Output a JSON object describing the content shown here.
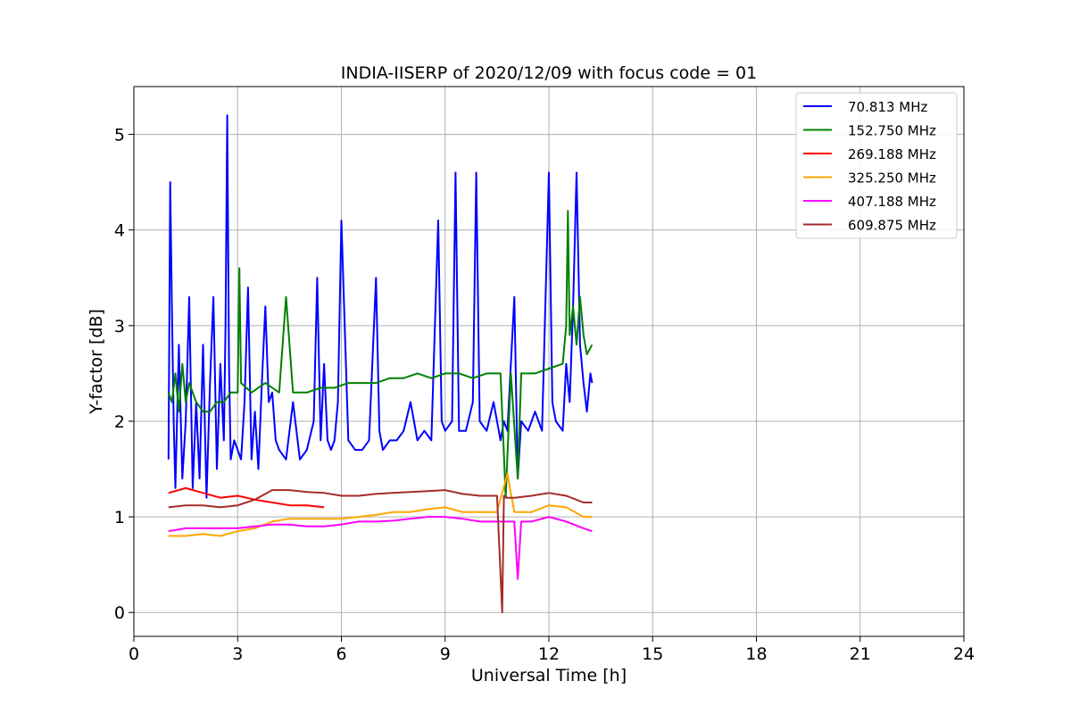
{
  "chart_data": {
    "type": "line",
    "title": "INDIA-IISERP of 2020/12/09 with focus code = 01",
    "xlabel": "Universal Time [h]",
    "ylabel": "Y-factor [dB]",
    "xlim": [
      0,
      24
    ],
    "ylim": [
      -0.25,
      5.5
    ],
    "xticks": [
      "0",
      "3",
      "6",
      "9",
      "12",
      "15",
      "18",
      "21",
      "24"
    ],
    "yticks": [
      "0",
      "1",
      "2",
      "3",
      "4",
      "5"
    ],
    "grid": true,
    "legend_position": "top-right",
    "series": [
      {
        "name": "70.813 MHz",
        "color": "#0000ff",
        "x": [
          1.0,
          1.05,
          1.1,
          1.15,
          1.2,
          1.3,
          1.4,
          1.5,
          1.6,
          1.7,
          1.8,
          1.9,
          2.0,
          2.1,
          2.2,
          2.3,
          2.4,
          2.5,
          2.6,
          2.65,
          2.7,
          2.75,
          2.8,
          2.9,
          3.0,
          3.1,
          3.2,
          3.3,
          3.4,
          3.5,
          3.6,
          3.7,
          3.8,
          3.9,
          4.0,
          4.1,
          4.2,
          4.4,
          4.6,
          4.8,
          5.0,
          5.2,
          5.3,
          5.4,
          5.5,
          5.6,
          5.7,
          5.8,
          5.9,
          6.0,
          6.2,
          6.4,
          6.6,
          6.8,
          7.0,
          7.1,
          7.2,
          7.4,
          7.6,
          7.8,
          8.0,
          8.2,
          8.4,
          8.6,
          8.8,
          8.9,
          9.0,
          9.2,
          9.3,
          9.4,
          9.6,
          9.8,
          9.9,
          10.0,
          10.2,
          10.4,
          10.6,
          10.7,
          10.8,
          11.0,
          11.1,
          11.2,
          11.4,
          11.6,
          11.8,
          12.0,
          12.1,
          12.2,
          12.4,
          12.5,
          12.6,
          12.7,
          12.8,
          12.9,
          13.0,
          13.1,
          13.2,
          13.25
        ],
        "y": [
          1.6,
          4.5,
          3.2,
          2.0,
          1.3,
          2.8,
          1.4,
          2.0,
          3.3,
          1.3,
          2.2,
          1.4,
          2.8,
          1.2,
          2.4,
          3.3,
          1.5,
          2.6,
          1.8,
          3.0,
          5.2,
          2.6,
          1.6,
          1.8,
          1.7,
          1.6,
          2.2,
          3.4,
          1.6,
          2.1,
          1.5,
          2.4,
          3.2,
          2.2,
          2.3,
          1.8,
          1.7,
          1.6,
          2.2,
          1.6,
          1.7,
          2.0,
          3.5,
          1.8,
          2.6,
          1.8,
          1.7,
          1.8,
          2.2,
          4.1,
          1.8,
          1.7,
          1.7,
          1.8,
          3.5,
          1.9,
          1.7,
          1.8,
          1.8,
          1.9,
          2.2,
          1.8,
          1.9,
          1.8,
          4.1,
          2.0,
          1.9,
          2.0,
          4.6,
          1.9,
          1.9,
          2.2,
          4.6,
          2.0,
          1.9,
          2.2,
          1.8,
          2.0,
          1.9,
          3.3,
          1.4,
          2.0,
          1.9,
          2.1,
          1.9,
          4.6,
          2.2,
          2.0,
          1.9,
          2.6,
          2.2,
          3.2,
          4.6,
          2.8,
          2.4,
          2.1,
          2.5,
          2.4
        ]
      },
      {
        "name": "152.750 MHz",
        "color": "#008000",
        "x": [
          1.0,
          1.1,
          1.2,
          1.3,
          1.4,
          1.5,
          1.6,
          1.8,
          2.0,
          2.2,
          2.4,
          2.6,
          2.8,
          3.0,
          3.05,
          3.1,
          3.4,
          3.8,
          4.2,
          4.4,
          4.6,
          5.0,
          5.4,
          5.8,
          6.2,
          6.6,
          7.0,
          7.4,
          7.8,
          8.2,
          8.6,
          9.0,
          9.4,
          9.8,
          10.2,
          10.6,
          10.75,
          10.9,
          11.1,
          11.2,
          11.4,
          11.6,
          12.0,
          12.4,
          12.5,
          12.55,
          12.6,
          12.7,
          12.8,
          12.9,
          13.0,
          13.1,
          13.25
        ],
        "y": [
          2.3,
          2.2,
          2.5,
          2.1,
          2.6,
          2.2,
          2.4,
          2.2,
          2.1,
          2.1,
          2.2,
          2.2,
          2.3,
          2.3,
          3.6,
          2.4,
          2.3,
          2.4,
          2.3,
          3.3,
          2.3,
          2.3,
          2.35,
          2.35,
          2.4,
          2.4,
          2.4,
          2.45,
          2.45,
          2.5,
          2.45,
          2.5,
          2.5,
          2.45,
          2.5,
          2.5,
          1.2,
          2.5,
          1.4,
          2.5,
          2.5,
          2.5,
          2.55,
          2.6,
          3.0,
          4.2,
          2.9,
          3.2,
          2.8,
          3.3,
          2.9,
          2.7,
          2.8
        ]
      },
      {
        "name": "269.188 MHz",
        "color": "#ff0000",
        "x": [
          1.0,
          1.5,
          2.0,
          2.5,
          3.0,
          3.5,
          4.0,
          4.5,
          5.0,
          5.5
        ],
        "y": [
          1.25,
          1.3,
          1.25,
          1.2,
          1.22,
          1.18,
          1.15,
          1.12,
          1.12,
          1.1
        ]
      },
      {
        "name": "325.250 MHz",
        "color": "#ffa500",
        "x": [
          1.0,
          1.5,
          2.0,
          2.5,
          3.0,
          3.5,
          4.0,
          4.5,
          5.0,
          5.5,
          6.0,
          6.5,
          7.0,
          7.5,
          8.0,
          8.5,
          9.0,
          9.5,
          10.0,
          10.5,
          10.8,
          11.0,
          11.5,
          12.0,
          12.5,
          13.0,
          13.25
        ],
        "y": [
          0.8,
          0.8,
          0.82,
          0.8,
          0.85,
          0.88,
          0.95,
          0.98,
          0.98,
          0.98,
          0.98,
          1.0,
          1.02,
          1.05,
          1.05,
          1.08,
          1.1,
          1.05,
          1.05,
          1.05,
          1.45,
          1.05,
          1.05,
          1.12,
          1.1,
          1.0,
          1.0
        ]
      },
      {
        "name": "407.188 MHz",
        "color": "#ff00ff",
        "x": [
          1.0,
          1.5,
          2.0,
          2.5,
          3.0,
          3.5,
          4.0,
          4.5,
          5.0,
          5.5,
          6.0,
          6.5,
          7.0,
          7.5,
          8.0,
          8.5,
          9.0,
          9.5,
          10.0,
          10.5,
          11.0,
          11.1,
          11.2,
          11.5,
          12.0,
          12.5,
          13.0,
          13.25
        ],
        "y": [
          0.85,
          0.88,
          0.88,
          0.88,
          0.88,
          0.9,
          0.92,
          0.92,
          0.9,
          0.9,
          0.92,
          0.95,
          0.95,
          0.96,
          0.98,
          1.0,
          1.0,
          0.98,
          0.95,
          0.95,
          0.95,
          0.35,
          0.95,
          0.95,
          1.0,
          0.95,
          0.88,
          0.85
        ]
      },
      {
        "name": "609.875 MHz",
        "color": "#a52a2a",
        "x": [
          1.0,
          1.5,
          2.0,
          2.5,
          3.0,
          3.5,
          4.0,
          4.5,
          5.0,
          5.5,
          6.0,
          6.5,
          7.0,
          7.5,
          8.0,
          8.5,
          9.0,
          9.5,
          10.0,
          10.5,
          10.65,
          10.7,
          10.8,
          11.0,
          11.5,
          12.0,
          12.5,
          13.0,
          13.25
        ],
        "y": [
          1.1,
          1.12,
          1.12,
          1.1,
          1.12,
          1.18,
          1.28,
          1.28,
          1.26,
          1.25,
          1.22,
          1.22,
          1.24,
          1.25,
          1.26,
          1.27,
          1.28,
          1.24,
          1.22,
          1.22,
          0.0,
          1.22,
          1.2,
          1.2,
          1.22,
          1.25,
          1.22,
          1.15,
          1.15
        ]
      }
    ]
  }
}
